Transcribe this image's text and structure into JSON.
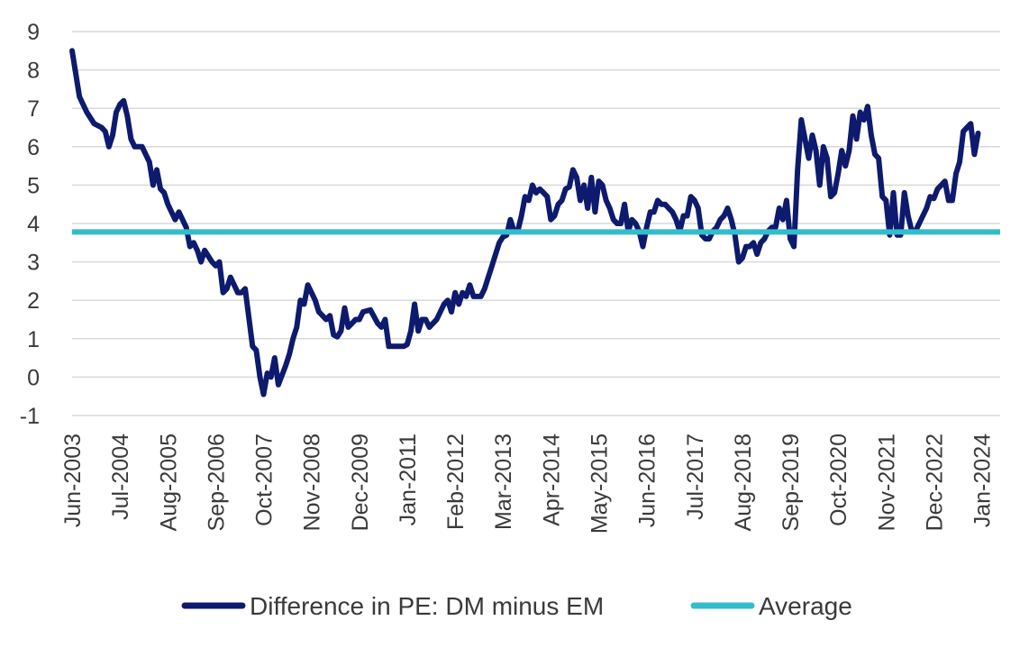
{
  "chart_data": {
    "type": "line",
    "title": "",
    "xlabel": "",
    "ylabel": "",
    "ylim": [
      -1,
      9
    ],
    "yticks": [
      -1,
      0,
      1,
      2,
      3,
      4,
      5,
      6,
      7,
      8,
      9
    ],
    "x_start": "2003-06",
    "x_end": "2024-06",
    "xticks": [
      {
        "label": "Jun-2003",
        "date": "2003-06"
      },
      {
        "label": "Jul-2004",
        "date": "2004-07"
      },
      {
        "label": "Aug-2005",
        "date": "2005-08"
      },
      {
        "label": "Sep-2006",
        "date": "2006-09"
      },
      {
        "label": "Oct-2007",
        "date": "2007-10"
      },
      {
        "label": "Nov-2008",
        "date": "2008-11"
      },
      {
        "label": "Dec-2009",
        "date": "2009-12"
      },
      {
        "label": "Jan-2011",
        "date": "2011-01"
      },
      {
        "label": "Feb-2012",
        "date": "2012-02"
      },
      {
        "label": "Mar-2013",
        "date": "2013-03"
      },
      {
        "label": "Apr-2014",
        "date": "2014-04"
      },
      {
        "label": "May-2015",
        "date": "2015-05"
      },
      {
        "label": "Jun-2016",
        "date": "2016-06"
      },
      {
        "label": "Jul-2017",
        "date": "2017-07"
      },
      {
        "label": "Aug-2018",
        "date": "2018-08"
      },
      {
        "label": "Sep-2019",
        "date": "2019-09"
      },
      {
        "label": "Oct-2020",
        "date": "2020-10"
      },
      {
        "label": "Nov-2021",
        "date": "2021-11"
      },
      {
        "label": "Dec-2022",
        "date": "2022-12"
      },
      {
        "label": "Jan-2024",
        "date": "2024-01"
      }
    ],
    "grid": true,
    "legend_position": "bottom",
    "series": [
      {
        "name": "Difference in PE: DM minus EM",
        "color": "#0d1a6e",
        "points": [
          [
            "2003-06",
            8.5
          ],
          [
            "2003-08",
            7.3
          ],
          [
            "2003-10",
            6.9
          ],
          [
            "2003-12",
            6.6
          ],
          [
            "2004-02",
            6.5
          ],
          [
            "2004-03",
            6.4
          ],
          [
            "2004-04",
            6.0
          ],
          [
            "2004-05",
            6.3
          ],
          [
            "2004-06",
            6.9
          ],
          [
            "2004-07",
            7.1
          ],
          [
            "2004-08",
            7.2
          ],
          [
            "2004-09",
            6.8
          ],
          [
            "2004-10",
            6.2
          ],
          [
            "2004-11",
            6.0
          ],
          [
            "2005-01",
            6.0
          ],
          [
            "2005-03",
            5.6
          ],
          [
            "2005-04",
            5.0
          ],
          [
            "2005-05",
            5.4
          ],
          [
            "2005-06",
            4.9
          ],
          [
            "2005-07",
            4.8
          ],
          [
            "2005-08",
            4.5
          ],
          [
            "2005-10",
            4.1
          ],
          [
            "2005-11",
            4.3
          ],
          [
            "2006-01",
            3.9
          ],
          [
            "2006-02",
            3.4
          ],
          [
            "2006-03",
            3.5
          ],
          [
            "2006-04",
            3.3
          ],
          [
            "2006-05",
            3.0
          ],
          [
            "2006-06",
            3.3
          ],
          [
            "2006-08",
            3.0
          ],
          [
            "2006-09",
            2.9
          ],
          [
            "2006-10",
            3.0
          ],
          [
            "2006-11",
            2.2
          ],
          [
            "2006-12",
            2.3
          ],
          [
            "2007-01",
            2.6
          ],
          [
            "2007-03",
            2.2
          ],
          [
            "2007-04",
            2.2
          ],
          [
            "2007-05",
            2.3
          ],
          [
            "2007-07",
            0.8
          ],
          [
            "2007-08",
            0.7
          ],
          [
            "2007-09",
            0.0
          ],
          [
            "2007-10",
            -0.45
          ],
          [
            "2007-11",
            0.1
          ],
          [
            "2007-12",
            0.0
          ],
          [
            "2008-01",
            0.5
          ],
          [
            "2008-02",
            -0.2
          ],
          [
            "2008-04",
            0.3
          ],
          [
            "2008-05",
            0.6
          ],
          [
            "2008-06",
            1.0
          ],
          [
            "2008-07",
            1.3
          ],
          [
            "2008-08",
            2.0
          ],
          [
            "2008-09",
            1.9
          ],
          [
            "2008-10",
            2.4
          ],
          [
            "2008-11",
            2.2
          ],
          [
            "2008-12",
            2.0
          ],
          [
            "2009-01",
            1.7
          ],
          [
            "2009-02",
            1.6
          ],
          [
            "2009-03",
            1.5
          ],
          [
            "2009-04",
            1.6
          ],
          [
            "2009-05",
            1.1
          ],
          [
            "2009-06",
            1.05
          ],
          [
            "2009-07",
            1.2
          ],
          [
            "2009-08",
            1.8
          ],
          [
            "2009-09",
            1.3
          ],
          [
            "2009-10",
            1.4
          ],
          [
            "2009-11",
            1.5
          ],
          [
            "2009-12",
            1.5
          ],
          [
            "2010-01",
            1.7
          ],
          [
            "2010-03",
            1.75
          ],
          [
            "2010-05",
            1.4
          ],
          [
            "2010-06",
            1.3
          ],
          [
            "2010-07",
            1.5
          ],
          [
            "2010-08",
            0.8
          ],
          [
            "2010-10",
            0.8
          ],
          [
            "2010-12",
            0.8
          ],
          [
            "2011-01",
            0.85
          ],
          [
            "2011-02",
            1.2
          ],
          [
            "2011-03",
            1.9
          ],
          [
            "2011-04",
            1.2
          ],
          [
            "2011-05",
            1.5
          ],
          [
            "2011-06",
            1.5
          ],
          [
            "2011-07",
            1.3
          ],
          [
            "2011-09",
            1.5
          ],
          [
            "2011-10",
            1.7
          ],
          [
            "2011-11",
            1.9
          ],
          [
            "2011-12",
            2.0
          ],
          [
            "2012-01",
            1.7
          ],
          [
            "2012-02",
            2.2
          ],
          [
            "2012-03",
            1.9
          ],
          [
            "2012-04",
            2.2
          ],
          [
            "2012-05",
            2.1
          ],
          [
            "2012-06",
            2.4
          ],
          [
            "2012-07",
            2.1
          ],
          [
            "2012-09",
            2.1
          ],
          [
            "2012-10",
            2.3
          ],
          [
            "2012-11",
            2.6
          ],
          [
            "2012-12",
            2.9
          ],
          [
            "2013-01",
            3.2
          ],
          [
            "2013-02",
            3.5
          ],
          [
            "2013-03",
            3.65
          ],
          [
            "2013-04",
            3.7
          ],
          [
            "2013-05",
            4.1
          ],
          [
            "2013-06",
            3.8
          ],
          [
            "2013-07",
            3.8
          ],
          [
            "2013-08",
            4.2
          ],
          [
            "2013-09",
            4.7
          ],
          [
            "2013-10",
            4.6
          ],
          [
            "2013-11",
            5.0
          ],
          [
            "2013-12",
            4.8
          ],
          [
            "2014-01",
            4.9
          ],
          [
            "2014-02",
            4.8
          ],
          [
            "2014-03",
            4.7
          ],
          [
            "2014-04",
            4.1
          ],
          [
            "2014-05",
            4.2
          ],
          [
            "2014-06",
            4.5
          ],
          [
            "2014-07",
            4.6
          ],
          [
            "2014-08",
            4.9
          ],
          [
            "2014-09",
            4.95
          ],
          [
            "2014-10",
            5.4
          ],
          [
            "2014-11",
            5.2
          ],
          [
            "2014-12",
            4.6
          ],
          [
            "2015-01",
            5.0
          ],
          [
            "2015-02",
            4.4
          ],
          [
            "2015-03",
            5.2
          ],
          [
            "2015-04",
            4.3
          ],
          [
            "2015-05",
            5.1
          ],
          [
            "2015-06",
            5.0
          ],
          [
            "2015-07",
            4.6
          ],
          [
            "2015-08",
            4.4
          ],
          [
            "2015-09",
            4.1
          ],
          [
            "2015-10",
            4.0
          ],
          [
            "2015-11",
            4.0
          ],
          [
            "2015-12",
            4.5
          ],
          [
            "2016-01",
            3.8
          ],
          [
            "2016-02",
            4.1
          ],
          [
            "2016-03",
            4.0
          ],
          [
            "2016-04",
            3.8
          ],
          [
            "2016-05",
            3.4
          ],
          [
            "2016-06",
            3.9
          ],
          [
            "2016-07",
            4.3
          ],
          [
            "2016-08",
            4.3
          ],
          [
            "2016-09",
            4.6
          ],
          [
            "2016-10",
            4.5
          ],
          [
            "2016-11",
            4.5
          ],
          [
            "2016-12",
            4.4
          ],
          [
            "2017-01",
            4.3
          ],
          [
            "2017-02",
            4.1
          ],
          [
            "2017-03",
            3.8
          ],
          [
            "2017-04",
            4.2
          ],
          [
            "2017-05",
            4.2
          ],
          [
            "2017-06",
            4.7
          ],
          [
            "2017-07",
            4.6
          ],
          [
            "2017-08",
            4.4
          ],
          [
            "2017-09",
            3.7
          ],
          [
            "2017-10",
            3.6
          ],
          [
            "2017-11",
            3.6
          ],
          [
            "2017-12",
            3.8
          ],
          [
            "2018-01",
            3.9
          ],
          [
            "2018-02",
            4.1
          ],
          [
            "2018-03",
            4.2
          ],
          [
            "2018-04",
            4.4
          ],
          [
            "2018-05",
            4.1
          ],
          [
            "2018-06",
            3.7
          ],
          [
            "2018-07",
            3.0
          ],
          [
            "2018-08",
            3.1
          ],
          [
            "2018-09",
            3.4
          ],
          [
            "2018-10",
            3.4
          ],
          [
            "2018-11",
            3.5
          ],
          [
            "2018-12",
            3.2
          ],
          [
            "2019-01",
            3.5
          ],
          [
            "2019-02",
            3.6
          ],
          [
            "2019-03",
            3.8
          ],
          [
            "2019-04",
            3.9
          ],
          [
            "2019-05",
            3.9
          ],
          [
            "2019-06",
            4.4
          ],
          [
            "2019-07",
            4.1
          ],
          [
            "2019-08",
            4.6
          ],
          [
            "2019-09",
            3.6
          ],
          [
            "2019-10",
            3.4
          ],
          [
            "2019-11",
            5.4
          ],
          [
            "2019-12",
            6.7
          ],
          [
            "2020-01",
            6.2
          ],
          [
            "2020-02",
            5.7
          ],
          [
            "2020-03",
            6.3
          ],
          [
            "2020-04",
            5.9
          ],
          [
            "2020-05",
            5.0
          ],
          [
            "2020-06",
            6.0
          ],
          [
            "2020-07",
            5.7
          ],
          [
            "2020-08",
            4.7
          ],
          [
            "2020-09",
            4.8
          ],
          [
            "2020-10",
            5.3
          ],
          [
            "2020-11",
            5.9
          ],
          [
            "2020-12",
            5.5
          ],
          [
            "2021-01",
            5.9
          ],
          [
            "2021-02",
            6.8
          ],
          [
            "2021-03",
            6.2
          ],
          [
            "2021-04",
            6.9
          ],
          [
            "2021-05",
            6.7
          ],
          [
            "2021-06",
            7.05
          ],
          [
            "2021-07",
            6.3
          ],
          [
            "2021-08",
            5.8
          ],
          [
            "2021-09",
            5.7
          ],
          [
            "2021-10",
            4.7
          ],
          [
            "2021-11",
            4.6
          ],
          [
            "2021-12",
            3.7
          ],
          [
            "2022-01",
            4.8
          ],
          [
            "2022-02",
            3.7
          ],
          [
            "2022-03",
            3.7
          ],
          [
            "2022-04",
            4.8
          ],
          [
            "2022-05",
            4.2
          ],
          [
            "2022-06",
            3.8
          ],
          [
            "2022-07",
            3.8
          ],
          [
            "2022-08",
            4.0
          ],
          [
            "2022-09",
            4.2
          ],
          [
            "2022-10",
            4.4
          ],
          [
            "2022-11",
            4.7
          ],
          [
            "2022-12",
            4.65
          ],
          [
            "2023-01",
            4.9
          ],
          [
            "2023-02",
            5.0
          ],
          [
            "2023-03",
            5.1
          ],
          [
            "2023-04",
            4.6
          ],
          [
            "2023-05",
            4.6
          ],
          [
            "2023-06",
            5.3
          ],
          [
            "2023-07",
            5.6
          ],
          [
            "2023-08",
            6.4
          ],
          [
            "2023-09",
            6.5
          ],
          [
            "2023-10",
            6.6
          ],
          [
            "2023-11",
            5.8
          ],
          [
            "2023-12",
            6.35
          ]
        ]
      },
      {
        "name": "Average",
        "color": "#33bccb",
        "constant": 3.78
      }
    ]
  }
}
